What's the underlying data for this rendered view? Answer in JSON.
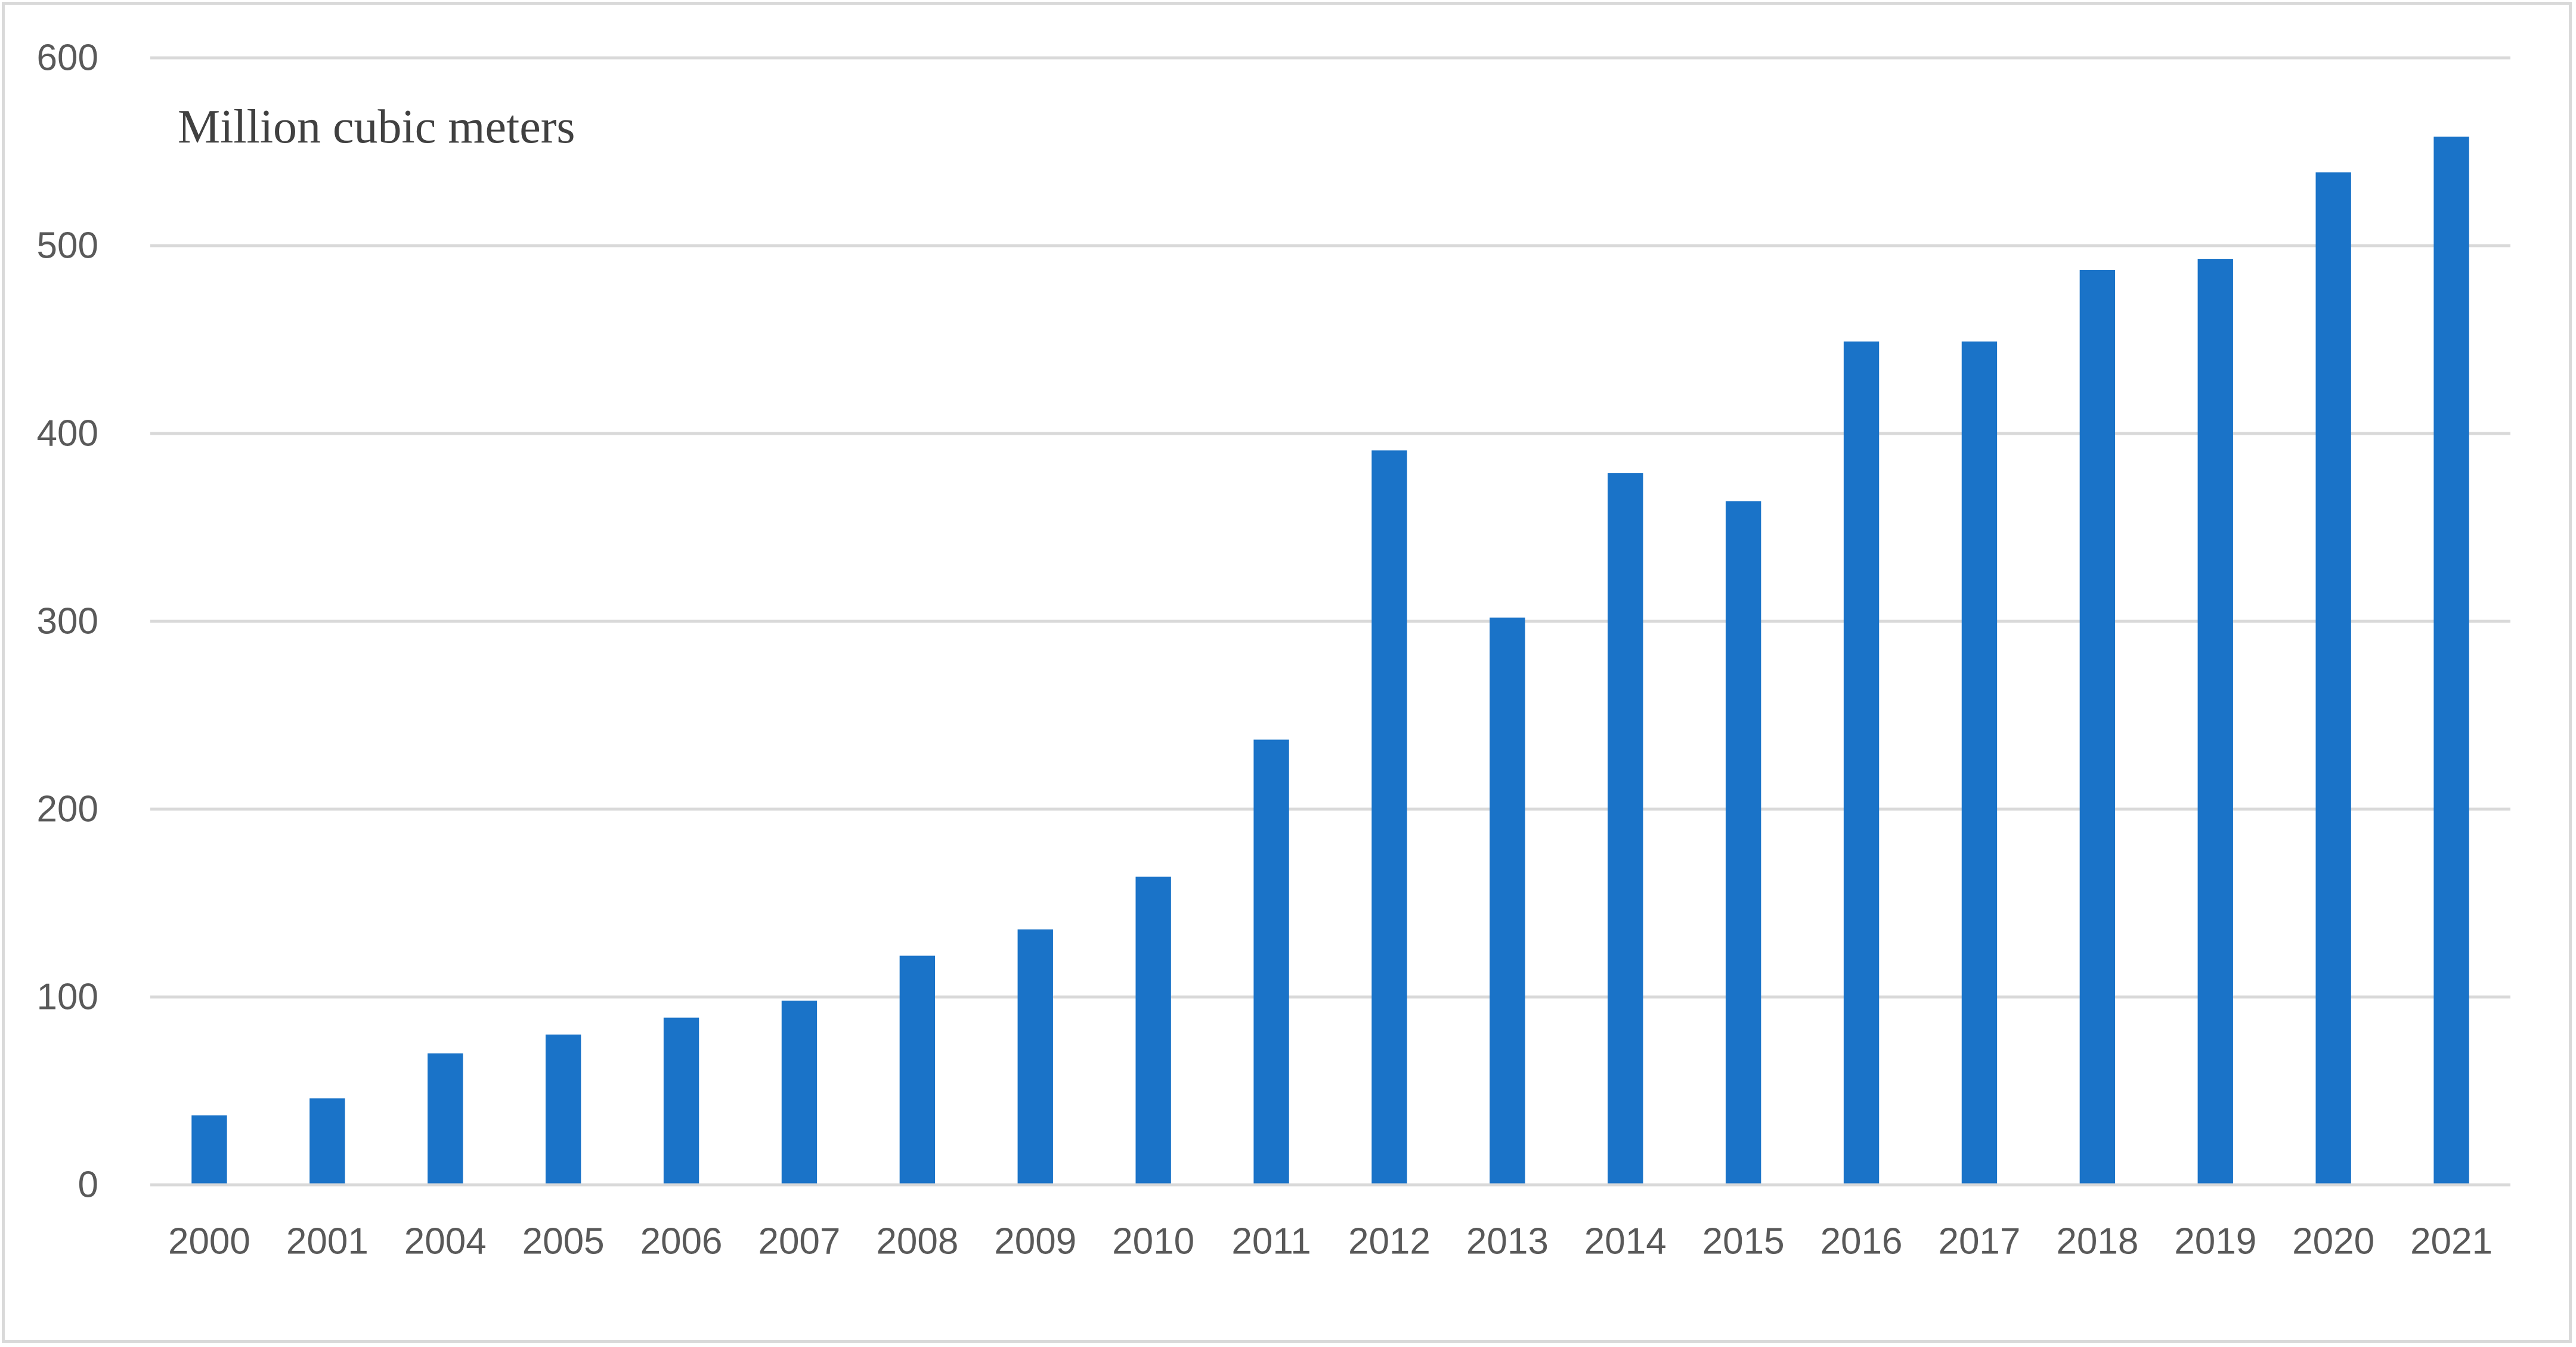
{
  "chart_data": {
    "type": "bar",
    "title": "",
    "unit_label": "Million cubic meters",
    "xlabel": "",
    "ylabel": "",
    "ylim": [
      0,
      600
    ],
    "yticks": [
      0,
      100,
      200,
      300,
      400,
      500,
      600
    ],
    "grid": true,
    "legend": "none",
    "bar_color": "#1a73c8",
    "categories": [
      "2000",
      "2001",
      "2004",
      "2005",
      "2006",
      "2007",
      "2008",
      "2009",
      "2010",
      "2011",
      "2012",
      "2013",
      "2014",
      "2015",
      "2016",
      "2017",
      "2018",
      "2019",
      "2020",
      "2021"
    ],
    "values": [
      37,
      46,
      70,
      80,
      89,
      98,
      122,
      136,
      164,
      237,
      391,
      302,
      379,
      364,
      449,
      449,
      487,
      493,
      539,
      558
    ]
  }
}
